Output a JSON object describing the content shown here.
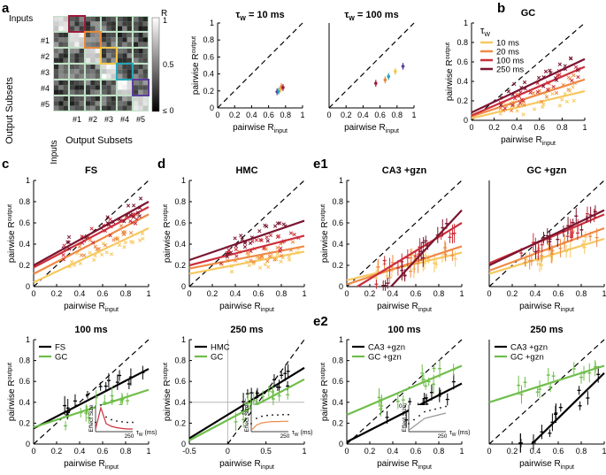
{
  "panel_labels": {
    "a": "a",
    "b": "b",
    "c": "c",
    "d": "d",
    "e1": "e1",
    "e2": "e2"
  },
  "matrix": {
    "top_label": "Inputs",
    "row_labels": [
      "#1",
      "#2",
      "#3",
      "#4",
      "#5"
    ],
    "col_labels": [
      "#1",
      "#2",
      "#3",
      "#4",
      "#5"
    ],
    "ylabel": "Output Subsets",
    "xlabel": "Output Subsets",
    "side_label": "Inputs",
    "colorbar_title": "R",
    "colorbar_ticks": [
      "1",
      "0.5",
      "≤ 0"
    ],
    "box_colors": [
      "#9e1a3c",
      "#e8883a",
      "#f3c64a",
      "#25a6b8",
      "#5b3e9c"
    ]
  },
  "common": {
    "xlabel_main": "pairwise R",
    "xlabel_sub": "input",
    "ylabel_main": "pairwise R",
    "ylabel_sub": "output"
  },
  "legend_b": {
    "title_main": "τ",
    "title_sub": "W",
    "items": [
      {
        "label": "10 ms",
        "color": "#f6c85f"
      },
      {
        "label": "20 ms",
        "color": "#ef8a45"
      },
      {
        "label": "100 ms",
        "color": "#cc2f3c"
      },
      {
        "label": "250 ms",
        "color": "#7a1530"
      }
    ]
  },
  "inset_labels": {
    "ylabel": "Effect Size",
    "xlabel": "τ",
    "xlabel_sub": "W",
    "xlabel_unit": "(ms)",
    "xtick": "250"
  },
  "chart_data": [
    {
      "id": "a_tau10",
      "type": "scatter",
      "title_main": "τ",
      "title_sub": "W",
      "title_rest": " = 10 ms",
      "xlim": [
        0,
        1
      ],
      "ylim": [
        0,
        1
      ],
      "xticks": [
        "0",
        "0.2",
        "0.4",
        "0.6",
        "0.8",
        "1"
      ],
      "yticks": [
        "0",
        "0.2",
        "0.4",
        "0.6",
        "0.8",
        "1"
      ],
      "points": [
        {
          "x": 0.7,
          "y": 0.19,
          "c": "#5b3e9c"
        },
        {
          "x": 0.72,
          "y": 0.2,
          "c": "#25a6b8"
        },
        {
          "x": 0.74,
          "y": 0.22,
          "c": "#f3c64a"
        },
        {
          "x": 0.75,
          "y": 0.25,
          "c": "#e8883a"
        },
        {
          "x": 0.77,
          "y": 0.24,
          "c": "#9e1a3c"
        }
      ]
    },
    {
      "id": "a_tau100",
      "type": "scatter",
      "title_main": "τ",
      "title_sub": "W",
      "title_rest": " = 100 ms",
      "xlim": [
        0,
        1
      ],
      "ylim": [
        0,
        1
      ],
      "xticks": [
        "0",
        "0.2",
        "0.4",
        "0.6",
        "0.8",
        "1"
      ],
      "yticks": [],
      "points": [
        {
          "x": 0.55,
          "y": 0.29,
          "c": "#9e1a3c"
        },
        {
          "x": 0.66,
          "y": 0.33,
          "c": "#e8883a"
        },
        {
          "x": 0.7,
          "y": 0.37,
          "c": "#25a6b8"
        },
        {
          "x": 0.78,
          "y": 0.43,
          "c": "#f3c64a"
        },
        {
          "x": 0.87,
          "y": 0.49,
          "c": "#5b3e9c"
        }
      ]
    },
    {
      "id": "b_gc",
      "type": "scatter",
      "title": "GC",
      "xlim": [
        0,
        1
      ],
      "ylim": [
        0,
        1
      ],
      "xticks": [
        "0",
        "0.2",
        "0.4",
        "0.6",
        "0.8",
        "1"
      ],
      "yticks": [
        "0",
        "0.2",
        "0.4",
        "0.6",
        "0.8",
        "1"
      ],
      "series": [
        {
          "name": "10 ms",
          "color": "#f6c85f",
          "line": [
            0.02,
            0.3
          ]
        },
        {
          "name": "20 ms",
          "color": "#ef8a45",
          "line": [
            0.04,
            0.42
          ]
        },
        {
          "name": "100 ms",
          "color": "#cc2f3c",
          "line": [
            0.05,
            0.55
          ]
        },
        {
          "name": "250 ms",
          "color": "#7a1530",
          "line": [
            0.08,
            0.63
          ]
        }
      ]
    },
    {
      "id": "c_fs",
      "type": "scatter",
      "title": "FS",
      "xlim": [
        0,
        1
      ],
      "ylim": [
        0,
        1
      ],
      "xticks": [
        "0",
        "0.2",
        "0.4",
        "0.6",
        "0.8",
        "1"
      ],
      "yticks": [
        "0",
        "0.2",
        "0.4",
        "0.6",
        "0.8",
        "1"
      ],
      "series": [
        {
          "name": "10 ms",
          "color": "#f6c85f",
          "line": [
            0.04,
            0.55
          ]
        },
        {
          "name": "20 ms",
          "color": "#ef8a45",
          "line": [
            0.12,
            0.68
          ]
        },
        {
          "name": "100 ms",
          "color": "#cc2f3c",
          "line": [
            0.18,
            0.75
          ]
        },
        {
          "name": "250 ms",
          "color": "#7a1530",
          "line": [
            0.2,
            0.8
          ]
        }
      ]
    },
    {
      "id": "d_hmc",
      "type": "scatter",
      "title": "HMC",
      "xlim": [
        0,
        1
      ],
      "ylim": [
        0,
        1
      ],
      "xticks": [
        "0",
        "0.2",
        "0.4",
        "0.6",
        "0.8",
        "1"
      ],
      "yticks": [
        "0",
        "0.2",
        "0.4",
        "0.6",
        "0.8",
        "1"
      ],
      "series": [
        {
          "name": "10 ms",
          "color": "#f6c85f",
          "line": [
            0.12,
            0.33
          ]
        },
        {
          "name": "20 ms",
          "color": "#ef8a45",
          "line": [
            0.17,
            0.38
          ]
        },
        {
          "name": "100 ms",
          "color": "#cc2f3c",
          "line": [
            0.2,
            0.48
          ]
        },
        {
          "name": "250 ms",
          "color": "#7a1530",
          "line": [
            0.25,
            0.62
          ]
        }
      ]
    },
    {
      "id": "e1_ca3",
      "type": "errorbar",
      "title": "CA3 +gzn",
      "xlim": [
        0,
        1
      ],
      "ylim": [
        0,
        1
      ],
      "xticks": [
        "0",
        "0.2",
        "0.4",
        "0.6",
        "0.8",
        "1"
      ],
      "yticks": [
        "0",
        "0.2",
        "0.4",
        "0.6",
        "0.8",
        "1"
      ],
      "series": [
        {
          "name": "10 ms",
          "color": "#f6c85f",
          "line": [
            0.06,
            0.32
          ]
        },
        {
          "name": "20 ms",
          "color": "#ef8a45",
          "line": [
            0.02,
            0.38
          ]
        },
        {
          "name": "100 ms",
          "color": "#cc2f3c",
          "line": [
            -0.06,
            0.6
          ]
        },
        {
          "name": "250 ms",
          "color": "#7a1530",
          "line": [
            -0.45,
            0.72
          ]
        }
      ]
    },
    {
      "id": "e1_gc",
      "type": "errorbar",
      "title": "GC +gzn",
      "xlim": [
        0,
        1
      ],
      "ylim": [
        0,
        1
      ],
      "xticks": [
        "0",
        "0.2",
        "0.4",
        "0.6",
        "0.8",
        "1"
      ],
      "yticks": [],
      "series": [
        {
          "name": "10 ms",
          "color": "#f6c85f",
          "line": [
            0.12,
            0.45
          ]
        },
        {
          "name": "20 ms",
          "color": "#ef8a45",
          "line": [
            0.15,
            0.55
          ]
        },
        {
          "name": "100 ms",
          "color": "#cc2f3c",
          "line": [
            0.22,
            0.68
          ]
        },
        {
          "name": "250 ms",
          "color": "#7a1530",
          "line": [
            0.2,
            0.72
          ]
        }
      ]
    },
    {
      "id": "c_100",
      "type": "errorbar",
      "title": "100 ms",
      "xlim": [
        0,
        1
      ],
      "ylim": [
        0,
        1
      ],
      "xticks": [
        "0",
        "0.2",
        "0.4",
        "0.6",
        "0.8",
        "1"
      ],
      "yticks": [
        "0",
        "0.2",
        "0.4",
        "0.6",
        "0.8",
        "1"
      ],
      "legend": [
        {
          "label": "FS",
          "color": "#000000"
        },
        {
          "label": "GC",
          "color": "#6fbe4a"
        }
      ],
      "series": [
        {
          "name": "FS",
          "color": "#000000",
          "line": [
            0.15,
            0.72
          ]
        },
        {
          "name": "GC",
          "color": "#6fbe4a",
          "line": [
            0.16,
            0.52
          ]
        }
      ],
      "inset": {
        "color": "#cc2f3c",
        "values": [
          0.1,
          0.9,
          0.3,
          0.2,
          0.15,
          0.12,
          0.1,
          0.1
        ]
      }
    },
    {
      "id": "d_250",
      "type": "errorbar",
      "title": "250 ms",
      "xlim": [
        -0.5,
        1
      ],
      "ylim": [
        0,
        1
      ],
      "xticks": [
        "-0.5",
        "0",
        "0.5",
        "1"
      ],
      "yticks": [
        "0",
        "0.2",
        "0.4",
        "0.6",
        "0.8",
        "1"
      ],
      "legend": [
        {
          "label": "HMC",
          "color": "#000000"
        },
        {
          "label": "GC",
          "color": "#6fbe4a"
        }
      ],
      "series": [
        {
          "name": "HMC",
          "color": "#000000",
          "line": [
            0.28,
            0.73
          ]
        },
        {
          "name": "GC",
          "color": "#6fbe4a",
          "line": [
            0.23,
            0.62
          ]
        }
      ],
      "inset": {
        "color": "#ef8a45",
        "values": [
          0.05,
          0.25,
          0.33,
          0.36,
          0.38,
          0.38,
          0.39,
          0.39
        ]
      }
    },
    {
      "id": "e2_100",
      "type": "errorbar",
      "title": "100 ms",
      "xlim": [
        0,
        1
      ],
      "ylim": [
        0,
        1
      ],
      "xticks": [
        "0",
        "0.2",
        "0.4",
        "0.6",
        "0.8",
        "1"
      ],
      "yticks": [
        "0",
        "0.2",
        "0.4",
        "0.6",
        "0.8",
        "1"
      ],
      "legend": [
        {
          "label": "CA3 +gzn",
          "color": "#000000"
        },
        {
          "label": "GC +gzn",
          "color": "#6fbe4a"
        }
      ],
      "series": [
        {
          "name": "CA3 +gzn",
          "color": "#000000",
          "line": [
            0.02,
            0.58
          ]
        },
        {
          "name": "GC +gzn",
          "color": "#6fbe4a",
          "line": [
            0.28,
            0.75
          ]
        }
      ],
      "inset": {
        "color": "#999999",
        "ytick": "0.7",
        "values": [
          0.05,
          0.2,
          0.35,
          0.5,
          0.55,
          0.6,
          0.65,
          0.7
        ]
      }
    },
    {
      "id": "e2_250",
      "type": "errorbar",
      "title": "250 ms",
      "xlim": [
        0,
        1
      ],
      "ylim": [
        0,
        1
      ],
      "xticks": [
        "0",
        "0.2",
        "0.4",
        "0.6",
        "0.8",
        "1"
      ],
      "yticks": [],
      "legend": [
        {
          "label": "CA3 +gzn",
          "color": "#000000"
        },
        {
          "label": "GC +gzn",
          "color": "#6fbe4a"
        }
      ],
      "series": [
        {
          "name": "CA3 +gzn",
          "color": "#000000",
          "line": [
            -0.4,
            0.68
          ]
        },
        {
          "name": "GC +gzn",
          "color": "#6fbe4a",
          "line": [
            0.4,
            0.75
          ]
        }
      ]
    }
  ]
}
